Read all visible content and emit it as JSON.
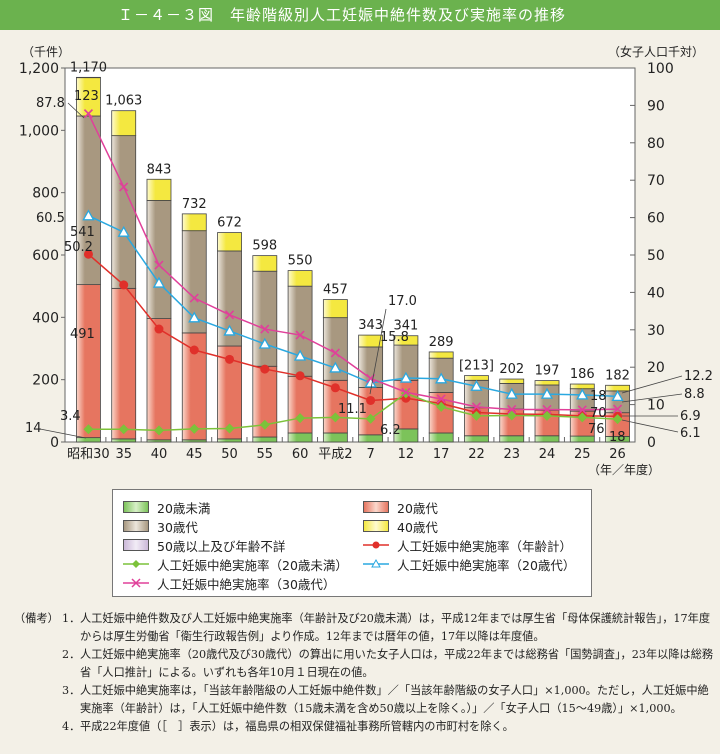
{
  "title": "Ｉ－４－３図　年齢階級別人工妊娠中絶件数及び実施率の推移",
  "chart_data": {
    "type": "bar+line",
    "left_axis_unit": "（千件）",
    "right_axis_unit": "（女子人口千対）",
    "x_unit": "（年／年度）",
    "left_ylim": [
      0,
      1200
    ],
    "left_ticks": [
      "0",
      "200",
      "400",
      "600",
      "800",
      "1,000",
      "1,200"
    ],
    "right_ylim": [
      0,
      100
    ],
    "right_ticks": [
      "0",
      "10",
      "20",
      "30",
      "40",
      "50",
      "60",
      "70",
      "80",
      "90",
      "100"
    ],
    "categories": [
      "昭和30",
      "35",
      "40",
      "45",
      "50",
      "55",
      "60",
      "平成2",
      "7",
      "12",
      "17",
      "22",
      "23",
      "24",
      "25",
      "26"
    ],
    "totals": [
      1170,
      1063,
      843,
      732,
      672,
      598,
      550,
      457,
      343,
      341,
      289,
      213,
      202,
      197,
      186,
      182
    ],
    "total_labels": [
      "1,170",
      "1,063",
      "843",
      "732",
      "672",
      "598",
      "550",
      "457",
      "343",
      "341",
      "289",
      "[213]",
      "202",
      "197",
      "186",
      "182"
    ],
    "bar_series": [
      {
        "name": "20歳未満",
        "color": "#8fcf6a",
        "values": [
          14,
          10,
          7,
          7,
          10,
          16,
          29,
          29,
          23,
          42,
          29,
          20,
          20,
          20,
          19,
          18
        ]
      },
      {
        "name": "20歳代",
        "color": "#ec8f7c",
        "values": [
          491,
          483,
          389,
          343,
          298,
          227,
          182,
          169,
          152,
          156,
          130,
          90,
          86,
          82,
          80,
          76
        ]
      },
      {
        "name": "30歳代",
        "color": "#bcae9a",
        "values": [
          541,
          490,
          379,
          328,
          305,
          305,
          289,
          201,
          130,
          113,
          110,
          88,
          82,
          81,
          72,
          70
        ]
      },
      {
        "name": "40歳代",
        "color": "#f7ef6a",
        "values": [
          123,
          80,
          68,
          54,
          59,
          50,
          50,
          58,
          38,
          30,
          20,
          15,
          14,
          14,
          15,
          18
        ]
      },
      {
        "name": "50歳以上及び年齢不詳",
        "color": "#d8c8e0",
        "values": [
          1,
          0,
          0,
          0,
          0,
          0,
          0,
          0,
          0,
          0,
          0,
          0,
          0,
          0,
          0,
          0
        ]
      }
    ],
    "line_series": [
      {
        "name": "人工妊娠中絶実施率（年齢計）",
        "color": "#e0302a",
        "marker": "circle",
        "values": [
          50.2,
          42.0,
          30.2,
          24.6,
          22.1,
          19.5,
          17.7,
          14.5,
          11.1,
          11.7,
          10.3,
          7.9,
          7.5,
          7.4,
          7.0,
          6.9
        ]
      },
      {
        "name": "人工妊娠中絶実施率（20歳未満）",
        "color": "#7cc23a",
        "marker": "diamond",
        "values": [
          3.4,
          3.4,
          3.1,
          3.5,
          3.6,
          4.6,
          6.4,
          6.6,
          6.2,
          13.0,
          9.4,
          7.0,
          7.1,
          7.0,
          6.6,
          6.1
        ]
      },
      {
        "name": "人工妊娠中絶実施率（20歳代）",
        "color": "#2aa8e0",
        "marker": "triangle",
        "values": [
          60.5,
          56.1,
          42.5,
          33.2,
          29.7,
          26.2,
          23.0,
          19.8,
          15.8,
          17.1,
          16.9,
          14.9,
          12.8,
          12.8,
          12.6,
          12.2
        ]
      },
      {
        "name": "人工妊娠中絶実施率（30歳代）",
        "color": "#e0409a",
        "marker": "cross",
        "values": [
          87.8,
          68.2,
          47.3,
          38.5,
          34.0,
          30.2,
          28.6,
          23.8,
          17.0,
          13.3,
          11.5,
          9.4,
          8.7,
          8.7,
          8.6,
          8.8
        ]
      }
    ],
    "annotations": [
      "123",
      "541",
      "491",
      "14",
      "87.8",
      "60.5",
      "50.2",
      "3.4",
      "17.0",
      "15.8",
      "11.1",
      "6.2",
      "18",
      "70",
      "76",
      "18",
      "12.2",
      "8.8",
      "6.9",
      "6.1"
    ],
    "grid": false,
    "legend": "bottom"
  },
  "legend": [
    "20歳未満",
    "20歳代",
    "30歳代",
    "40歳代",
    "50歳以上及び年齢不詳",
    "人工妊娠中絶実施率（年齢計）",
    "人工妊娠中絶実施率（20歳未満）",
    "人工妊娠中絶実施率（20歳代）",
    "人工妊娠中絶実施率（30歳代）"
  ],
  "notes": {
    "label": "（備考）",
    "items": [
      {
        "num": "1．",
        "text": "人工妊娠中絶件数及び人工妊娠中絶実施率（年齢計及び20歳未満）は，平成12年までは厚生省「母体保護統計報告」，17年度からは厚生労働省「衛生行政報告例」より作成。12年までは暦年の値，17年以降は年度値。"
      },
      {
        "num": "2．",
        "text": "人工妊娠中絶実施率（20歳代及び30歳代）の算出に用いた女子人口は，平成22年までは総務省「国勢調査」，23年以降は総務省「人口推計」による。いずれも各年10月１日現在の値。"
      },
      {
        "num": "3．",
        "text": "人工妊娠中絶実施率は，「当該年齢階級の人工妊娠中絶件数」／「当該年齢階級の女子人口」×1,000。ただし，人工妊娠中絶実施率（年齢計）は，「人工妊娠中絶件数（15歳未満を含め50歳以上を除く。）」／「女子人口（15～49歳）」×1,000。"
      },
      {
        "num": "4．",
        "text": "平成22年度値（［　］表示）は，福島県の相双保健福祉事務所管轄内の市町村を除く。"
      }
    ]
  }
}
